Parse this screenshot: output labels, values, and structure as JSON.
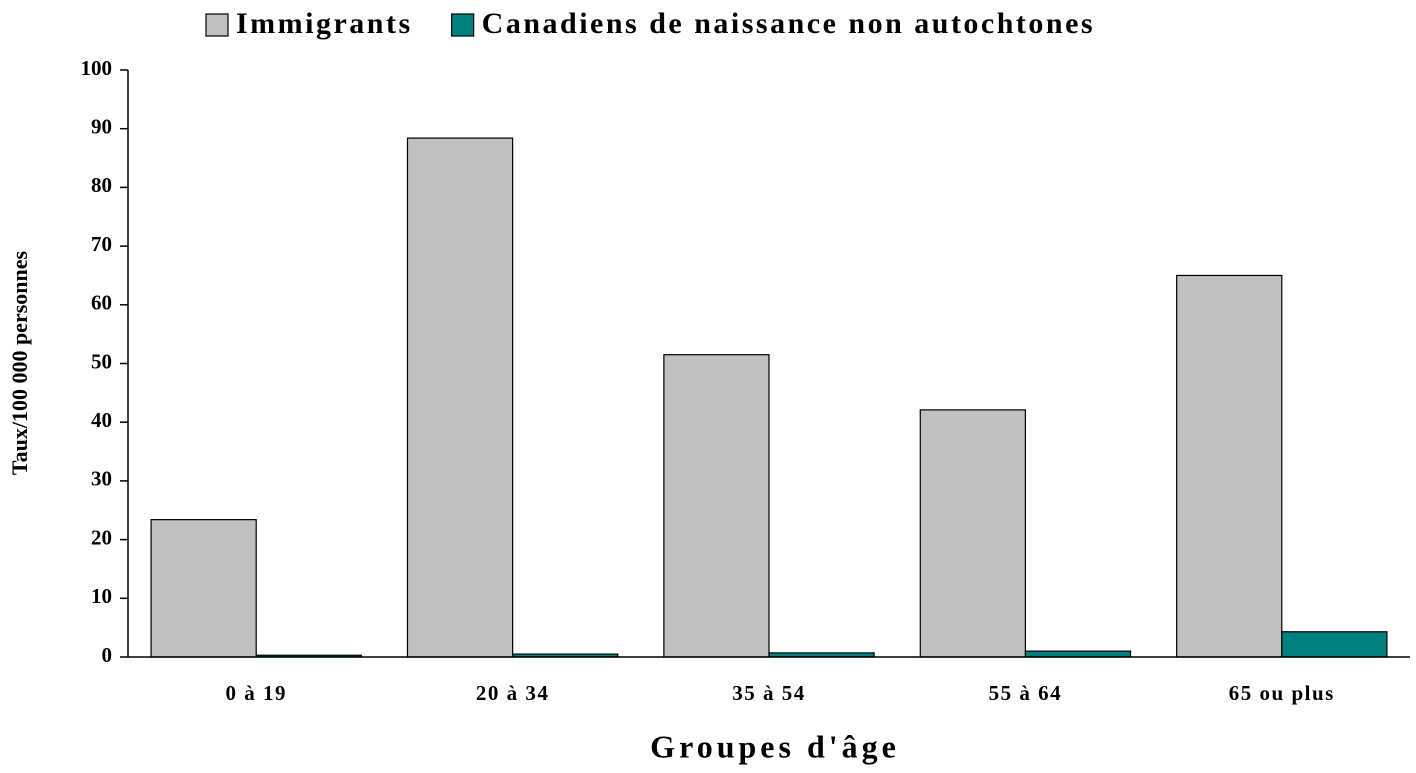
{
  "chart_data": {
    "type": "bar",
    "categories": [
      "0 à 19",
      "20 à 34",
      "35 à 54",
      "55 à 64",
      "65 ou plus"
    ],
    "series": [
      {
        "name": "Immigrants",
        "color": "#c0c0c0",
        "values": [
          23.4,
          88.4,
          51.5,
          42.1,
          65.0
        ]
      },
      {
        "name": "Canadiens de naissance non autochtones",
        "color": "#008080",
        "values": [
          0.3,
          0.5,
          0.7,
          1.0,
          4.3
        ]
      }
    ],
    "x_label": "Groupes d'âge",
    "y_label": "Taux/100 000 personnes",
    "ylim": [
      0,
      100
    ],
    "yticks": [
      0,
      10,
      20,
      30,
      40,
      50,
      60,
      70,
      80,
      90,
      100
    ],
    "legend": "top"
  }
}
